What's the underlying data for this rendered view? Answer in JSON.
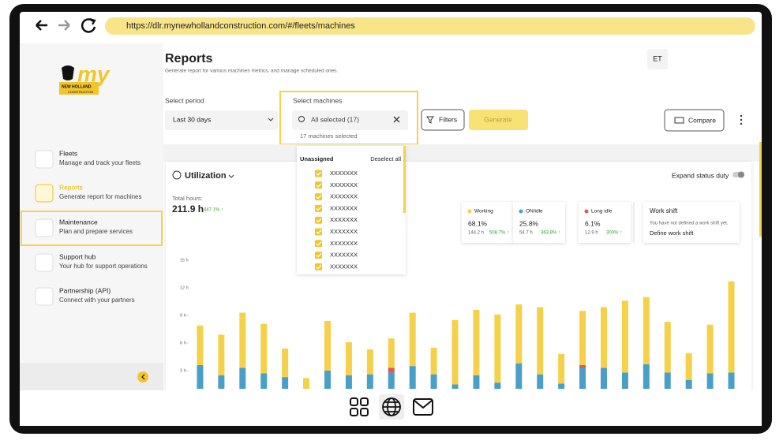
{
  "browser": {
    "url": "https://dlr.mynewhollandconstruction.com/#/fleets/machines"
  },
  "logo": {
    "brand": "my",
    "name": "NEW HOLLAND",
    "sub": "CONSTRUCTION"
  },
  "sidebar": {
    "nav": [
      {
        "title": "Fleets",
        "subtitle": "Manage and track your fleets"
      },
      {
        "title": "Reports",
        "subtitle": "Generate report for machines"
      },
      {
        "title": "Maintenance",
        "subtitle": "Plan and prepare services"
      },
      {
        "title": "Support hub",
        "subtitle": "Your hub for support operations"
      },
      {
        "title": "Partnership (API)",
        "subtitle": "Connect with your partners"
      }
    ]
  },
  "header": {
    "title": "Reports",
    "subtitle": "Generate report for various machines metrics, and manage scheduled ones.",
    "avatar": "ET"
  },
  "controls": {
    "period_label": "Select period",
    "period_value": "Last 30 days",
    "machines_label": "Select machines",
    "machines_value": "All selected (17)",
    "machines_count": "17 machines selected",
    "filters": "Filters",
    "generate": "Generate",
    "compare": "Compare"
  },
  "dropdown": {
    "group": "Unassigned",
    "deselect": "Deselect all",
    "items": [
      "XXXXXXX",
      "XXXXXXX",
      "XXXXXXX",
      "XXXXXXX",
      "XXXXXXX",
      "XXXXXXX",
      "XXXXXXX",
      "XXXXXXX",
      "XXXXXXX"
    ]
  },
  "utilization": {
    "title": "Utilization",
    "expand": "Expand status duty",
    "total_label": "Total hours:",
    "total_value": "211.9 h",
    "total_change": "447.1% ↑"
  },
  "workshift": {
    "title": "Work shift",
    "note": "You have not defined a work shift yet.",
    "link": "Define work shift"
  },
  "chart_data": {
    "type": "bar",
    "stacked": true,
    "ylim": [
      0,
      15
    ],
    "yticks": [
      {
        "value": 3,
        "label": "3 h"
      },
      {
        "value": 6,
        "label": "6 h"
      },
      {
        "value": 9,
        "label": "9 h"
      },
      {
        "value": 12,
        "label": "12 h"
      },
      {
        "value": 15,
        "label": "15 h"
      }
    ],
    "series": [
      {
        "name": "Working",
        "color": "#f5d04a",
        "share": "68.1%",
        "hours": "144.2 h",
        "change": "508.7% ↑",
        "values": [
          4.3,
          4.4,
          6.0,
          5.4,
          3.1,
          1.2,
          5.4,
          3.6,
          2.7,
          3.2,
          5.8,
          2.9,
          7.0,
          7.1,
          7.4,
          6.4,
          7.3,
          3.2,
          5.9,
          6.6,
          7.8,
          7.3,
          5.5,
          2.9,
          5.3,
          9.9
        ]
      },
      {
        "name": "ON/idle",
        "color": "#4a9fc6",
        "share": "25.8%",
        "hours": "54.7 h",
        "change": "363.8% ↑",
        "values": [
          3.6,
          2.5,
          3.3,
          2.7,
          2.3,
          1.0,
          3.0,
          2.5,
          2.6,
          2.8,
          3.5,
          2.6,
          1.5,
          2.5,
          1.7,
          3.8,
          2.6,
          1.6,
          3.3,
          3.3,
          2.8,
          3.7,
          2.8,
          2.0,
          2.7,
          2.8
        ]
      },
      {
        "name": "Long idle",
        "color": "#e0565b",
        "share": "6.1%",
        "hours": "12.9 h",
        "change": "300% ↑",
        "values": [
          0,
          0,
          0,
          0,
          0,
          0,
          0,
          0,
          0,
          0.5,
          0,
          0,
          0,
          0,
          0,
          0,
          0,
          0,
          0.3,
          0,
          0,
          0,
          0,
          0,
          0,
          0
        ]
      }
    ]
  }
}
